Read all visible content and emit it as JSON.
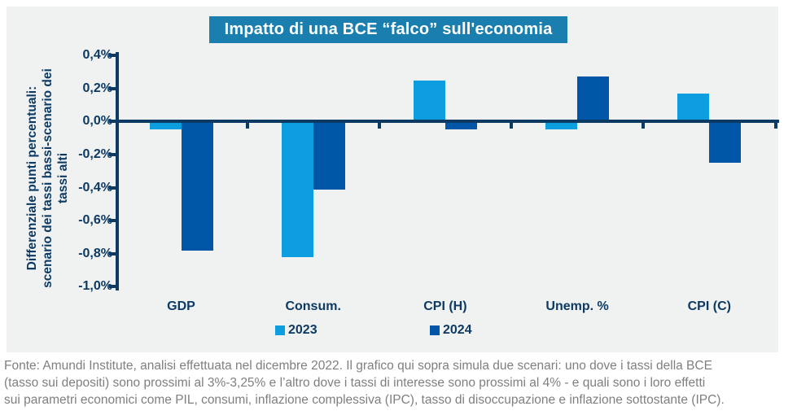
{
  "title": "Impatto di una BCE “falco” sull'economia",
  "colors": {
    "title_bg": "#1A7FAF",
    "title_text": "#FFFFFF",
    "series_2023": "#0C9EDF",
    "series_2024": "#0056A6",
    "axis": "#0D3A63",
    "text_navy": "#0D3A63",
    "panel_bg": "#F0F1F1",
    "footer_text": "#7F7F7F"
  },
  "y_axis_title_lines": [
    "Differenziale punti percentuali:",
    "scenario dei tassi bassi-scenario dei",
    "tassi alti"
  ],
  "chart_data": {
    "type": "bar",
    "title": "Impatto di una BCE “falco” sull'economia",
    "ylabel": "Differenziale punti percentuali: scenario dei tassi bassi-scenario dei tassi alti",
    "xlabel": "",
    "categories": [
      "GDP",
      "Consum.",
      "CPI (H)",
      "Unemp. %",
      "CPI (C)"
    ],
    "series": [
      {
        "name": "2023",
        "color": "#0C9EDF",
        "values": [
          -0.05,
          -0.82,
          0.25,
          -0.05,
          0.17
        ]
      },
      {
        "name": "2024",
        "color": "#0056A6",
        "values": [
          -0.78,
          -0.41,
          -0.05,
          0.27,
          -0.25
        ]
      }
    ],
    "ylim": [
      -1.0,
      0.4
    ],
    "ytick_step": 0.2,
    "ytick_labels": [
      "0,4%",
      "0,2%",
      "0,0%",
      "-0,2%",
      "-0,4%",
      "-0,6%",
      "-0,8%",
      "-1,0%"
    ],
    "grid": false,
    "legend_position": "bottom"
  },
  "footer": {
    "lines": [
      "Fonte: Amundi Institute, analisi effettuata nel dicembre 2022. Il grafico qui sopra simula due scenari: uno dove i tassi della BCE",
      "(tasso sui depositi) sono prossimi al 3%-3,25% e l’altro dove i tassi di interesse sono prossimi al 4% - e quali sono i loro effetti",
      "sui parametri economici come PIL, consumi, inflazione complessiva (IPC), tasso di disoccupazione e inflazione sottostante (IPC)."
    ]
  }
}
